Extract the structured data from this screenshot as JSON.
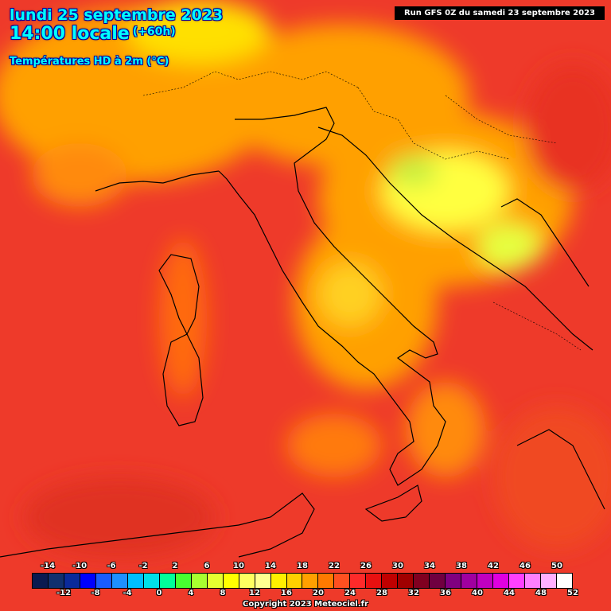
{
  "title": {
    "date": "lundi 25 septembre 2023",
    "time": "14:00 locale",
    "horizon": "(+60h)",
    "variable": "Températures HD à 2m (°C)"
  },
  "run": "Run GFS 0Z du samedi 23 septembre 2023",
  "copyright": "Copyright 2023 Meteociel.fr",
  "legend": {
    "top_labels": [
      "-14",
      "-10",
      "-6",
      "-2",
      "2",
      "6",
      "10",
      "14",
      "18",
      "22",
      "26",
      "30",
      "34",
      "38",
      "42",
      "46",
      "50"
    ],
    "bottom_labels": [
      "-12",
      "-8",
      "-4",
      "0",
      "4",
      "8",
      "12",
      "16",
      "20",
      "24",
      "28",
      "32",
      "36",
      "40",
      "44",
      "48",
      "52"
    ],
    "colors": [
      "#0a1a50",
      "#10306e",
      "#0a2a9a",
      "#0000ff",
      "#1a5cff",
      "#1e90ff",
      "#00bfff",
      "#00e0e8",
      "#00ff9a",
      "#48ff30",
      "#a8ff30",
      "#e6ff30",
      "#ffff00",
      "#ffff60",
      "#ffff90",
      "#fff000",
      "#ffd000",
      "#ffa000",
      "#ff7a00",
      "#ff5020",
      "#ff2a2a",
      "#e81010",
      "#c00000",
      "#a00000",
      "#800020",
      "#700040",
      "#800080",
      "#a000a0",
      "#c000c0",
      "#e000e0",
      "#ff40ff",
      "#ff80ff",
      "#ffb0ff",
      "#ffffff"
    ]
  },
  "colors": {
    "title": "#00ffff",
    "map_warm": "#ee3a2a",
    "map_mild": "#ffa000",
    "map_cool": "#ffff40",
    "coastline": "#000000"
  }
}
